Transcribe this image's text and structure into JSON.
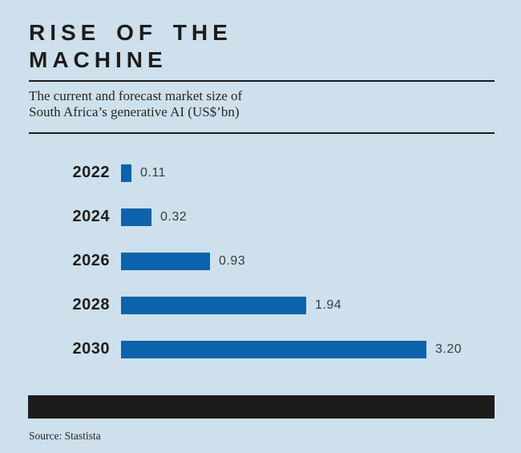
{
  "header": {
    "title_line1": "RISE OF THE",
    "title_line2": "MACHINE",
    "subtitle_line1": "The current and forecast market size of",
    "subtitle_line2": "South Africa’s generative AI (US$’bn)"
  },
  "chart_data": {
    "type": "bar",
    "orientation": "horizontal",
    "title": "RISE OF THE MACHINE",
    "subtitle": "The current and forecast market size of South Africa’s generative AI (US$’bn)",
    "categories": [
      "2022",
      "2024",
      "2026",
      "2028",
      "2030"
    ],
    "values": [
      0.11,
      0.32,
      0.93,
      1.94,
      3.2
    ],
    "value_labels": [
      "0.11",
      "0.32",
      "0.93",
      "1.94",
      "3.20"
    ],
    "xlabel": "",
    "ylabel": "",
    "xlim": [
      0,
      3.5
    ],
    "grid": false,
    "legend_position": "none",
    "bar_color": "#0c63ac"
  },
  "footer": {
    "source": "Source: Stastista"
  },
  "colors": {
    "background": "#cee0ec",
    "bar": "#0c63ac",
    "ink": "#1d1d1b",
    "band": "#1d1c1a"
  }
}
